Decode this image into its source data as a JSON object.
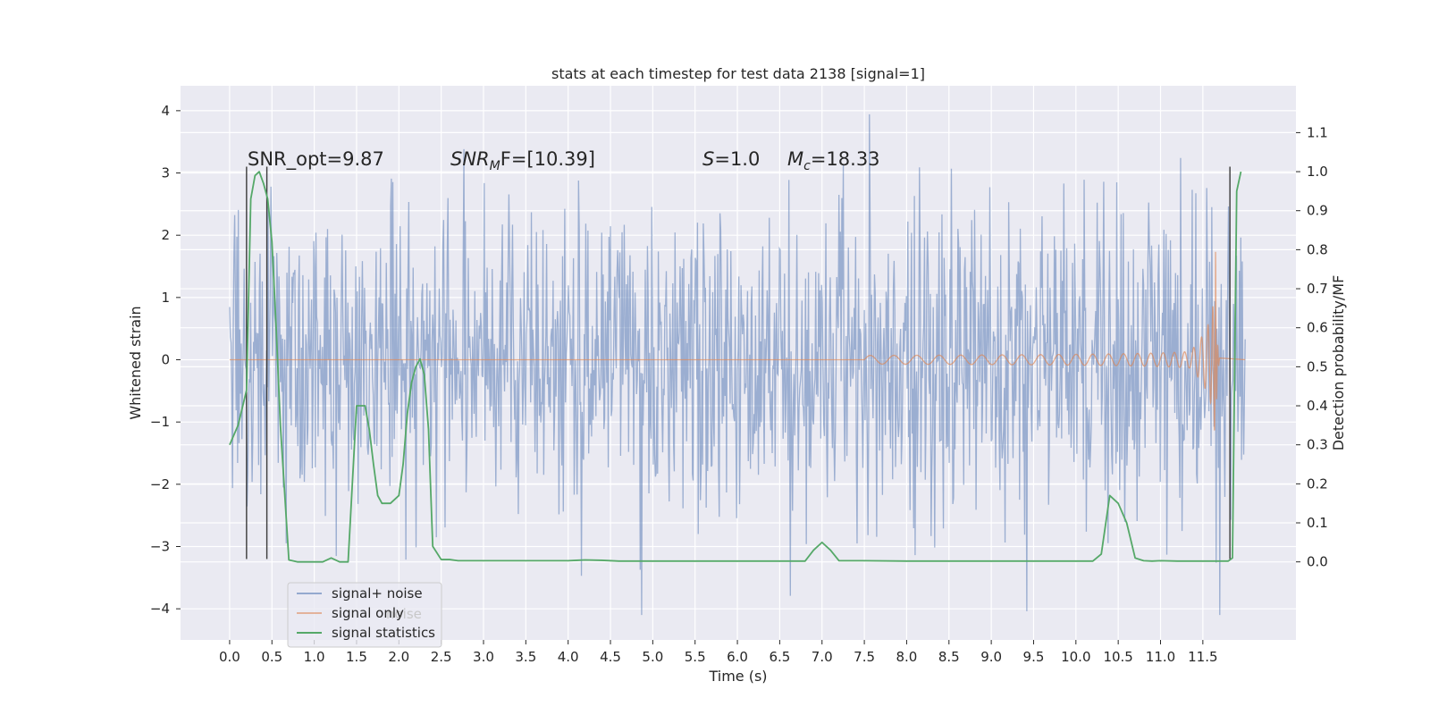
{
  "chart_data": {
    "type": "line",
    "title": "stats at each timestep for test data 2138 [signal=1]",
    "xlabel": "Time (s)",
    "ylabel_left": "Whitened strain",
    "ylabel_right": "Detection probability/MF",
    "xlim": [
      -0.58,
      12.6
    ],
    "ylim_left": [
      -4.5,
      4.4
    ],
    "ylim_right": [
      -0.2,
      1.22
    ],
    "x_ticks": [
      "0.0",
      "0.5",
      "1.0",
      "1.5",
      "2.0",
      "2.5",
      "3.0",
      "3.5",
      "4.0",
      "4.5",
      "5.0",
      "5.5",
      "6.0",
      "6.5",
      "7.0",
      "7.5",
      "8.0",
      "8.5",
      "9.0",
      "9.5",
      "10.0",
      "10.5",
      "11.0",
      "11.5"
    ],
    "y_ticks_left": [
      4,
      3,
      2,
      1,
      0,
      -1,
      -2,
      -3,
      -4
    ],
    "y_ticks_left_labels": [
      "4",
      "3",
      "2",
      "1",
      "0",
      "−1",
      "−2",
      "−3",
      "−4"
    ],
    "y_ticks_right": [
      "1.1",
      "1.0",
      "0.9",
      "0.8",
      "0.7",
      "0.6",
      "0.5",
      "0.4",
      "0.3",
      "0.2",
      "0.1",
      "0.0"
    ],
    "grid": true,
    "legend_position": "lower-left",
    "annotations": {
      "snr_opt": "SNR_opt=9.87",
      "snr_mf": "SNR",
      "snr_mf_sub": "M",
      "snr_mf_rest": "F=[10.39]",
      "s_italic": "S",
      "s_value": "=1.0",
      "mc_italic": "M",
      "mc_sub": "c",
      "mc_value": "=18.33"
    },
    "vertical_markers_x": [
      0.2,
      0.44,
      11.82
    ],
    "vertical_markers_ylim": [
      -3.2,
      3.1
    ],
    "series": [
      {
        "name": "signal+ noise",
        "color": "#4c72b0",
        "axis": "left",
        "description_range": [
          0,
          12.0
        ],
        "envelope_approx": [
          -4.1,
          4.0
        ]
      },
      {
        "name": "signal only",
        "color": "#dd8452",
        "axis": "left",
        "chirp_start_x": 7.5,
        "merger_x": 11.65,
        "merger_peak": 1.8,
        "end_x": 11.7
      },
      {
        "name": "signal statistics",
        "color": "#55a868",
        "axis": "right",
        "x": [
          0.0,
          0.1,
          0.2,
          0.25,
          0.3,
          0.35,
          0.4,
          0.45,
          0.5,
          0.55,
          0.6,
          0.7,
          0.8,
          1.0,
          1.1,
          1.2,
          1.3,
          1.35,
          1.4,
          1.5,
          1.6,
          1.65,
          1.7,
          1.75,
          1.8,
          1.9,
          2.0,
          2.05,
          2.1,
          2.15,
          2.2,
          2.25,
          2.3,
          2.35,
          2.4,
          2.5,
          2.6,
          2.7,
          2.8,
          3.0,
          4.0,
          4.1,
          4.2,
          4.4,
          4.6,
          5.0,
          6.0,
          6.8,
          6.9,
          7.0,
          7.1,
          7.2,
          7.5,
          8.0,
          9.0,
          9.5,
          10.0,
          10.2,
          10.3,
          10.4,
          10.45,
          10.5,
          10.6,
          10.7,
          10.8,
          10.9,
          11.0,
          11.2,
          11.5,
          11.7,
          11.8,
          11.85,
          11.9,
          11.95
        ],
        "y": [
          0.3,
          0.35,
          0.44,
          0.93,
          0.99,
          1.0,
          0.97,
          0.93,
          0.82,
          0.6,
          0.35,
          0.005,
          0.0,
          0.0,
          0.0,
          0.01,
          0.0,
          0.0,
          0.0,
          0.4,
          0.4,
          0.34,
          0.25,
          0.17,
          0.15,
          0.15,
          0.17,
          0.25,
          0.38,
          0.46,
          0.5,
          0.52,
          0.48,
          0.34,
          0.04,
          0.006,
          0.006,
          0.003,
          0.003,
          0.003,
          0.003,
          0.004,
          0.005,
          0.004,
          0.002,
          0.002,
          0.002,
          0.002,
          0.03,
          0.05,
          0.03,
          0.003,
          0.003,
          0.002,
          0.002,
          0.002,
          0.002,
          0.002,
          0.02,
          0.17,
          0.16,
          0.15,
          0.1,
          0.01,
          0.003,
          0.002,
          0.003,
          0.002,
          0.002,
          0.002,
          0.002,
          0.01,
          0.95,
          1.0
        ]
      }
    ],
    "legend": [
      {
        "label": "signal+ noise",
        "color": "#4c72b0"
      },
      {
        "label": "signal only",
        "color": "#dd8452"
      },
      {
        "label": "signal statistics",
        "color": "#55a868"
      }
    ],
    "legend_overlap_text": "noise"
  }
}
